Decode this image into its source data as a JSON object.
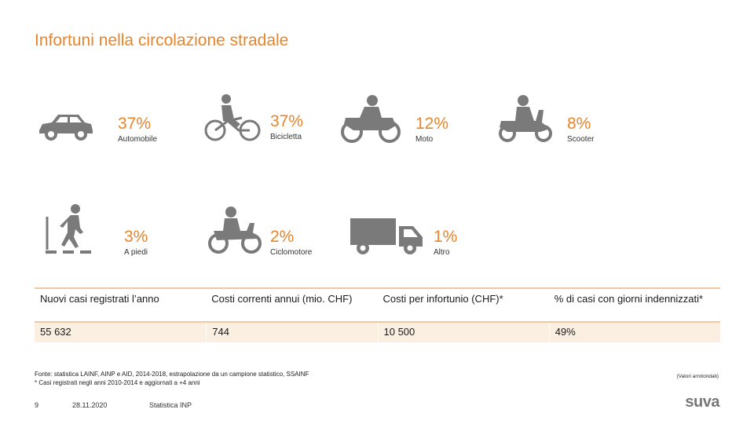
{
  "title": "Infortuni nella circolazione stradale",
  "colors": {
    "accent": "#e8852a",
    "icon": "#7a7a7a",
    "table_fill": "#fbefe2",
    "table_line": "#f0c9a2"
  },
  "stats": [
    {
      "pct": "37%",
      "label": "Automobile",
      "icon": "car-icon"
    },
    {
      "pct": "37%",
      "label": "Bicicletta",
      "icon": "bicycle-icon"
    },
    {
      "pct": "12%",
      "label": "Moto",
      "icon": "motorcycle-icon"
    },
    {
      "pct": "8%",
      "label": "Scooter",
      "icon": "scooter-icon"
    },
    {
      "pct": "3%",
      "label": "A piedi",
      "icon": "pedestrian-icon"
    },
    {
      "pct": "2%",
      "label": "Ciclomotore",
      "icon": "moped-icon"
    },
    {
      "pct": "1%",
      "label": "Altro",
      "icon": "truck-icon"
    }
  ],
  "table": {
    "headers": [
      "Nuovi casi registrati l’anno",
      "Costi correnti annui (mio. CHF)",
      "Costi per infortunio (CHF)*",
      "% di casi con giorni indennizzati*"
    ],
    "values": [
      "55 632",
      "744",
      "10 500",
      "49%"
    ]
  },
  "footer": {
    "source": "Fonte: statistica LAINF, AINP e AID, 2014-2018, estrapolazione da un campione statistico, SSAINF",
    "note": "* Casi registrati negli anni 2010-2014 e aggiornati a +4 anni",
    "rounded": "(Valori arrotondati)",
    "page": "9",
    "date": "28.11.2020",
    "section": "Statistica INP",
    "brand": "suva"
  }
}
